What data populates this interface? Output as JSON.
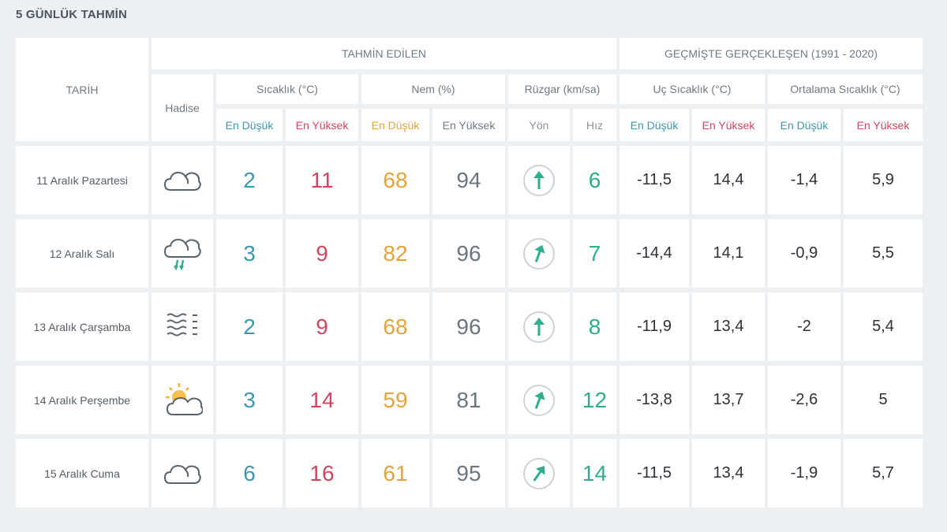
{
  "title": "5 GÜNLÜK TAHMİN",
  "headers": {
    "date": "TARİH",
    "event": "Hadise",
    "forecast": "TAHMİN EDİLEN",
    "history": "GEÇMİŞTE GERÇEKLEŞEN (1991 - 2020)",
    "temp": "Sıcaklık (°C)",
    "humidity": "Nem (%)",
    "wind": "Rüzgar (km/sa)",
    "extreme": "Uç Sıcaklık (°C)",
    "avg": "Ortalama Sıcaklık (°C)",
    "low": "En Düşük",
    "high": "En Yüksek",
    "dir": "Yön",
    "speed": "Hız"
  },
  "colors": {
    "low": "#3f97ad",
    "high": "#d24561",
    "humidity_low": "#e6a23c",
    "wind": "#2eae8c"
  },
  "rows": [
    {
      "date": "11 Aralık Pazartesi",
      "icon": "cloud-icon",
      "t_low": "2",
      "t_high": "11",
      "h_low": "68",
      "h_high": "94",
      "wind_dir_deg": 0,
      "wind_speed": "6",
      "x_low": "-11,5",
      "x_high": "14,4",
      "a_low": "-1,4",
      "a_high": "5,9"
    },
    {
      "date": "12 Aralık Salı",
      "icon": "rain-cloud-icon",
      "t_low": "3",
      "t_high": "9",
      "h_low": "82",
      "h_high": "96",
      "wind_dir_deg": 20,
      "wind_speed": "7",
      "x_low": "-14,4",
      "x_high": "14,1",
      "a_low": "-0,9",
      "a_high": "5,5"
    },
    {
      "date": "13 Aralık Çarşamba",
      "icon": "fog-icon",
      "t_low": "2",
      "t_high": "9",
      "h_low": "68",
      "h_high": "96",
      "wind_dir_deg": 0,
      "wind_speed": "8",
      "x_low": "-11,9",
      "x_high": "13,4",
      "a_low": "-2",
      "a_high": "5,4"
    },
    {
      "date": "14 Aralık Perşembe",
      "icon": "partly-cloudy-icon",
      "t_low": "3",
      "t_high": "14",
      "h_low": "59",
      "h_high": "81",
      "wind_dir_deg": 20,
      "wind_speed": "12",
      "x_low": "-13,8",
      "x_high": "13,7",
      "a_low": "-2,6",
      "a_high": "5"
    },
    {
      "date": "15 Aralık Cuma",
      "icon": "cloud-icon",
      "t_low": "6",
      "t_high": "16",
      "h_low": "61",
      "h_high": "95",
      "wind_dir_deg": 35,
      "wind_speed": "14",
      "x_low": "-11,5",
      "x_high": "13,4",
      "a_low": "-1,9",
      "a_high": "5,7"
    }
  ]
}
